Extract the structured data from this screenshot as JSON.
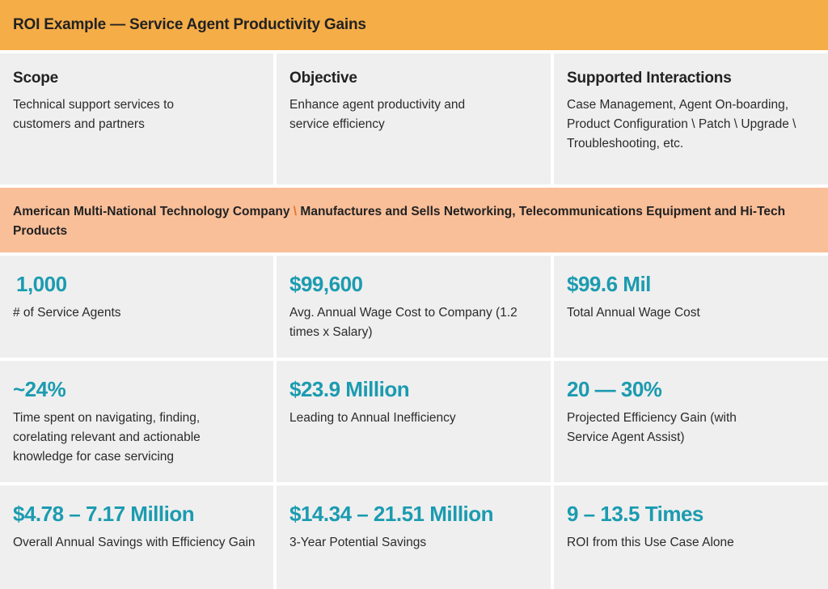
{
  "header": {
    "title": "ROI Example — Service Agent Productivity Gains"
  },
  "scope": [
    {
      "heading": "Scope",
      "body": "Technical support services to customers and partners"
    },
    {
      "heading": "Objective",
      "body": "Enhance agent productivity and service efficiency"
    },
    {
      "heading": "Supported Interactions",
      "body": "Case Management, Agent On-boarding, Product Configuration \\ Patch \\ Upgrade \\ Troubleshooting, etc."
    }
  ],
  "banner": {
    "part1": "American Multi-National Technology Company",
    "separator": "\\",
    "part2": "Manufactures and Sells Networking, Telecommunications Equipment and Hi-Tech Products"
  },
  "stats": [
    {
      "value": "1,000",
      "label": "# of Service Agents"
    },
    {
      "value": "$99,600",
      "label": "Avg. Annual Wage Cost to Company (1.2 times x Salary)"
    },
    {
      "value": "$99.6 Mil",
      "label": "Total Annual Wage Cost"
    },
    {
      "value": "~24%",
      "label": "Time spent on navigating, finding, corelating relevant and actionable knowledge for case servicing"
    },
    {
      "value": "$23.9 Million",
      "label": "Leading to Annual Inefficiency"
    },
    {
      "value": "20 — 30%",
      "label": "Projected Efficiency Gain (with Service Agent Assist)"
    },
    {
      "value": "$4.78 – 7.17 Million",
      "label": "Overall Annual Savings with Efficiency Gain"
    },
    {
      "value": "$14.34 – 21.51 Million",
      "label": "3-Year Potential Savings"
    },
    {
      "value": "9 – 13.5 Times",
      "label": "ROI from this Use Case Alone"
    }
  ],
  "colors": {
    "header_bg": "#f5ad48",
    "banner_bg": "#f9bf99",
    "cell_bg": "#efefef",
    "stat_value": "#1b9bb0",
    "separator": "#e8762c"
  }
}
